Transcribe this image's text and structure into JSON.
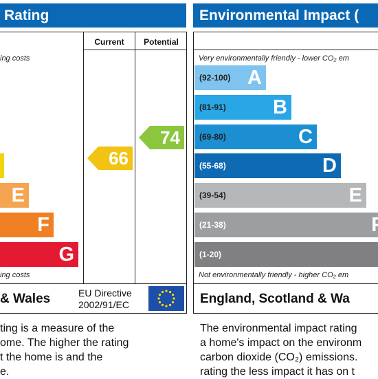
{
  "left_panel": {
    "title": "Rating",
    "current_label": "Current",
    "potential_label": "Potential",
    "top_caption": "ing costs",
    "bottom_caption": "ing costs",
    "bars": [
      {
        "letter": "",
        "color": "#f2d40a"
      },
      {
        "letter": "E",
        "color": "#f5a452"
      },
      {
        "letter": "F",
        "color": "#ef8023"
      },
      {
        "letter": "G",
        "color": "#e41a32"
      }
    ],
    "current_value": "66",
    "current_color": "#f2c312",
    "potential_value": "74",
    "potential_color": "#8cc63f",
    "footer_country": "& Wales",
    "directive_line1": "EU Directive",
    "directive_line2": "2002/91/EC",
    "description": [
      "ting is a measure of the",
      "ome. The higher the rating",
      "t the home is and the",
      "e."
    ]
  },
  "right_panel": {
    "title": "Environmental Impact (",
    "top_caption": "Very environmentally friendly - lower CO₂ em",
    "bottom_caption": "Not environmentally friendly - higher CO₂ em",
    "bars": [
      {
        "range": "(92-100)",
        "letter": "A",
        "color": "#7fc4ef"
      },
      {
        "range": "(81-91)",
        "letter": "B",
        "color": "#28a6e6"
      },
      {
        "range": "(69-80)",
        "letter": "C",
        "color": "#1b8fd2"
      },
      {
        "range": "(55-68)",
        "letter": "D",
        "color": "#0f6ab4"
      },
      {
        "range": "(39-54)",
        "letter": "E",
        "color": "#b5b7b9"
      },
      {
        "range": "(21-38)",
        "letter": "F",
        "color": "#9c9ea0"
      },
      {
        "range": "(1-20)",
        "letter": "",
        "color": "#807f81"
      }
    ],
    "footer_country": "England, Scotland & Wa",
    "description": [
      "The environmental impact rating",
      "a home's impact on the environm",
      "carbon dioxide (CO₂) emissions.",
      "rating the less impact it has on t"
    ]
  }
}
